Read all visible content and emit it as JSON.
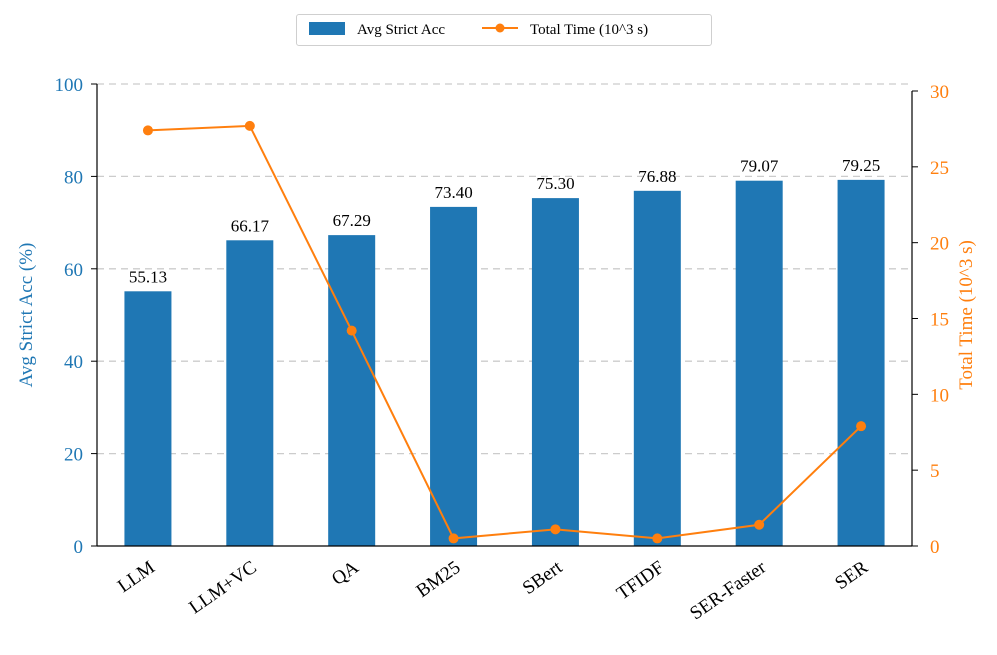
{
  "colors": {
    "bar": "#1f77b4",
    "line": "#ff7f0e",
    "grid": "#cccccc",
    "axis": "#000000"
  },
  "legend": {
    "bar_label": "Avg Strict Acc",
    "line_label": "Total Time (10^3 s)",
    "placement": "top-center"
  },
  "chart_data": {
    "type": "bar",
    "categories": [
      "LLM",
      "LLM+VC",
      "QA",
      "BM25",
      "SBert",
      "TFIDF",
      "SER-Faster",
      "SER"
    ],
    "series": [
      {
        "name": "Avg Strict Acc",
        "type": "bar",
        "axis": "left",
        "values": [
          55.13,
          66.17,
          67.29,
          73.4,
          75.3,
          76.88,
          79.07,
          79.25
        ],
        "labels": [
          "55.13",
          "66.17",
          "67.29",
          "73.40",
          "75.30",
          "76.88",
          "79.07",
          "79.25"
        ]
      },
      {
        "name": "Total Time (10^3 s)",
        "type": "line",
        "axis": "right",
        "values": [
          27.4,
          27.7,
          14.2,
          0.5,
          1.1,
          0.5,
          1.4,
          7.9
        ]
      }
    ],
    "ylabel_left": "Avg Strict Acc (%)",
    "ylabel_right": "Total Time (10^3 s)",
    "ylim_left": [
      0,
      100
    ],
    "ylim_right": [
      0,
      30
    ],
    "yticks_left": [
      "0",
      "20",
      "40",
      "60",
      "80",
      "100"
    ],
    "yticks_right": [
      "0",
      "5",
      "10",
      "15",
      "20",
      "25",
      "30"
    ],
    "grid": "horizontal-dashed"
  }
}
